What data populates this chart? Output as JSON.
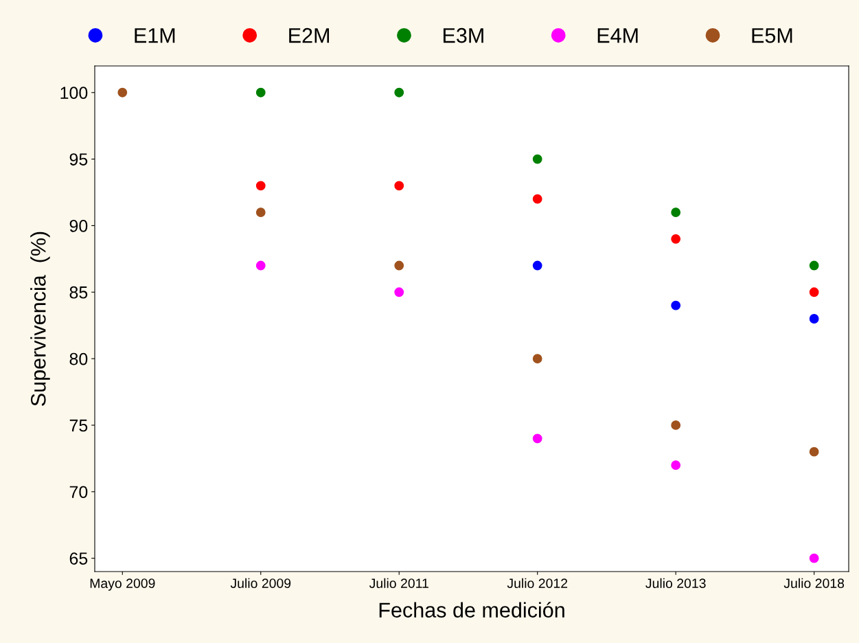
{
  "chart_data": {
    "type": "scatter",
    "xlabel": "Fechas de medición",
    "ylabel": "Supervivencia  (%)",
    "categories": [
      "Mayo 2009",
      "Julio 2009",
      "Julio 2011",
      "Julio 2012",
      "Julio 2013",
      "Julio 2018"
    ],
    "series": [
      {
        "name": "E1M",
        "color": "#0000ff",
        "values": [
          null,
          null,
          null,
          87,
          84,
          83
        ]
      },
      {
        "name": "E2M",
        "color": "#ff0000",
        "values": [
          null,
          93,
          93,
          92,
          89,
          85
        ]
      },
      {
        "name": "E3M",
        "color": "#008000",
        "values": [
          null,
          100,
          100,
          95,
          91,
          87
        ]
      },
      {
        "name": "E4M",
        "color": "#ff00ff",
        "values": [
          null,
          87,
          85,
          74,
          72,
          65
        ]
      },
      {
        "name": "E5M",
        "color": "#a0521e",
        "values": [
          100,
          91,
          87,
          80,
          75,
          73
        ]
      }
    ],
    "ylim": [
      64,
      102
    ],
    "yticks": [
      65,
      70,
      75,
      80,
      85,
      90,
      95,
      100
    ],
    "grid": false,
    "legend": "top",
    "marker": "circle"
  }
}
